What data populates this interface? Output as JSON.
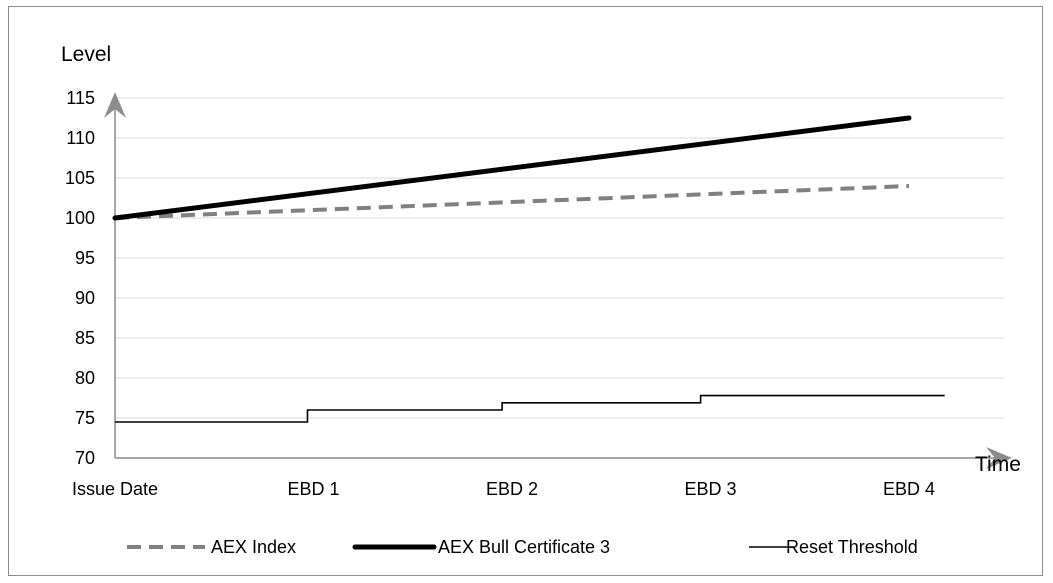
{
  "chart_data": {
    "type": "line",
    "ylabel": "Level",
    "xlabel": "Time",
    "ylim": [
      70,
      115
    ],
    "y_ticks": [
      70,
      75,
      80,
      85,
      90,
      95,
      100,
      105,
      110,
      115
    ],
    "categories": [
      "Issue Date",
      "EBD 1",
      "EBD 2",
      "EBD 3",
      "EBD 4"
    ],
    "grid": true,
    "legend_position": "bottom",
    "series": [
      {
        "name": "AEX Index",
        "style": "dashed",
        "color": "#808080",
        "x": [
          0,
          4
        ],
        "values": [
          100,
          104
        ]
      },
      {
        "name": "AEX Bull Certificate 3",
        "style": "thick",
        "color": "#000000",
        "x": [
          0,
          4
        ],
        "values": [
          100,
          112.5
        ]
      },
      {
        "name": "Reset Threshold",
        "style": "step",
        "color": "#000000",
        "x": [
          0,
          0.97,
          0.97,
          1.95,
          1.95,
          2.95,
          2.95,
          4.18
        ],
        "values": [
          74.5,
          74.5,
          76,
          76,
          76.9,
          76.9,
          77.8,
          77.8
        ]
      }
    ]
  }
}
